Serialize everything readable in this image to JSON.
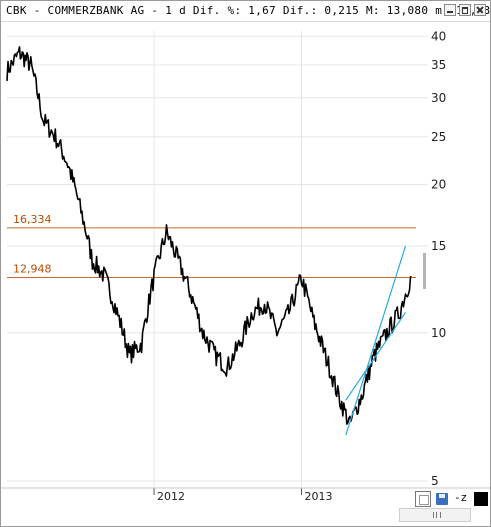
{
  "window": {
    "title": "CBK - COMMERZBANK AG - 1 d Dif. %: 1,67 Dif.: 0,215 M: 13,080 m: 12,730 F"
  },
  "colors": {
    "price": "#000000",
    "hline": "#c8682c",
    "channel": "#27a9e1",
    "grid": "#e6e6e6"
  },
  "chart_data": {
    "type": "line",
    "y_scale": "log",
    "ylim": [
      5,
      41
    ],
    "y_ticks": [
      "40",
      "35",
      "30",
      "25",
      "20",
      "15",
      "10",
      "5"
    ],
    "y_tick_values": [
      40,
      35,
      30,
      25,
      20,
      15,
      10,
      5
    ],
    "x_ticks": [
      "2012",
      "2013"
    ],
    "horizontal_lines": [
      {
        "label": "16,334",
        "value": 16.334
      },
      {
        "label": "12,948",
        "value": 12.948
      }
    ],
    "trend_channel": [
      {
        "from": [
          "2013-05",
          6.2
        ],
        "to": [
          "2013-10",
          15.0
        ]
      },
      {
        "from": [
          "2013-05",
          7.3
        ],
        "to": [
          "2013-10",
          11.0
        ]
      }
    ],
    "series": [
      {
        "name": "CBK",
        "x": [
          "2011-01",
          "2011-02",
          "2011-03",
          "2011-04",
          "2011-05",
          "2011-06",
          "2011-07",
          "2011-08",
          "2011-09",
          "2011-10",
          "2011-11",
          "2011-12",
          "2012-01",
          "2012-02",
          "2012-03",
          "2012-04",
          "2012-05",
          "2012-06",
          "2012-07",
          "2012-08",
          "2012-09",
          "2012-10",
          "2012-11",
          "2012-12",
          "2013-01",
          "2013-02",
          "2013-03",
          "2013-04",
          "2013-05",
          "2013-06",
          "2013-07",
          "2013-08",
          "2013-09",
          "2013-10"
        ],
        "values": [
          34,
          37,
          35,
          27,
          25,
          22,
          18,
          14,
          13,
          11,
          9,
          9.5,
          13,
          16,
          14,
          12,
          10,
          9,
          8.5,
          9.5,
          11,
          11.5,
          10,
          11,
          12.9,
          10.5,
          9,
          7.5,
          6.5,
          7.5,
          9,
          10,
          11,
          13
        ]
      }
    ]
  }
}
